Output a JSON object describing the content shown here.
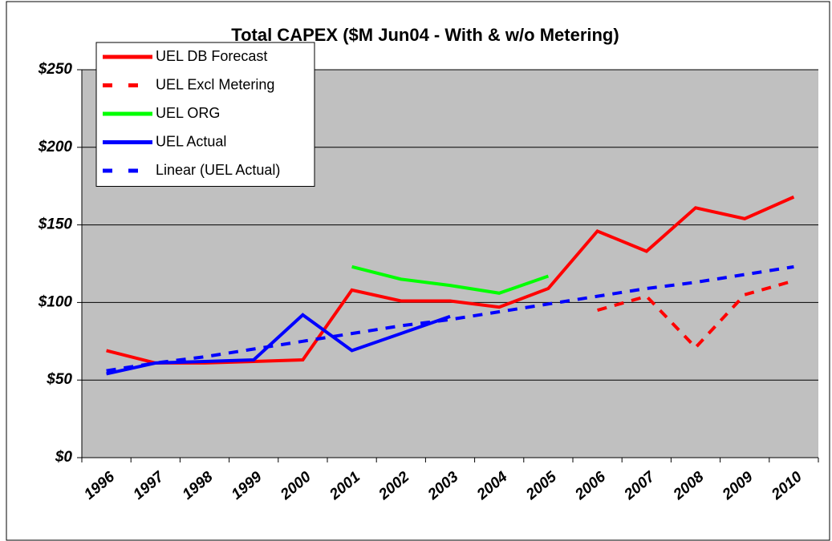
{
  "chart_data": {
    "type": "line",
    "title": "Total CAPEX ($M Jun04 - With & w/o Metering)",
    "categories": [
      "1996",
      "1997",
      "1998",
      "1999",
      "2000",
      "2001",
      "2002",
      "2003",
      "2004",
      "2005",
      "2006",
      "2007",
      "2008",
      "2009",
      "2010"
    ],
    "series": [
      {
        "name": "UEL DB Forecast",
        "color": "#ff0000",
        "dash": false,
        "values": [
          69,
          61,
          61,
          62,
          63,
          108,
          101,
          101,
          97,
          109,
          146,
          133,
          161,
          154,
          168
        ]
      },
      {
        "name": "UEL Excl Metering",
        "color": "#ff0000",
        "dash": true,
        "values": [
          null,
          null,
          null,
          null,
          null,
          null,
          null,
          null,
          null,
          null,
          95,
          104,
          71,
          105,
          114
        ]
      },
      {
        "name": "UEL ORG",
        "color": "#00ff00",
        "dash": false,
        "values": [
          null,
          null,
          null,
          null,
          null,
          123,
          115,
          111,
          106,
          117,
          null,
          null,
          null,
          null,
          null
        ]
      },
      {
        "name": "UEL Actual",
        "color": "#0000ff",
        "dash": false,
        "values": [
          54,
          61,
          62,
          63,
          92,
          69,
          80,
          91,
          null,
          null,
          null,
          null,
          null,
          null,
          null
        ]
      },
      {
        "name": "Linear (UEL Actual)",
        "color": "#0000ff",
        "dash": true,
        "values": [
          56,
          61,
          65,
          70,
          75,
          80,
          85,
          89,
          94,
          99,
          104,
          109,
          113,
          118,
          123
        ]
      }
    ],
    "ylim": [
      0,
      250
    ],
    "yticks": [
      {
        "value": 0,
        "label": "$0"
      },
      {
        "value": 50,
        "label": "$50"
      },
      {
        "value": 100,
        "label": "$100"
      },
      {
        "value": 150,
        "label": "$150"
      },
      {
        "value": 200,
        "label": "$200"
      },
      {
        "value": 250,
        "label": "$250"
      }
    ],
    "grid": true,
    "legend": "top-left",
    "background": "#c0c0c0"
  }
}
